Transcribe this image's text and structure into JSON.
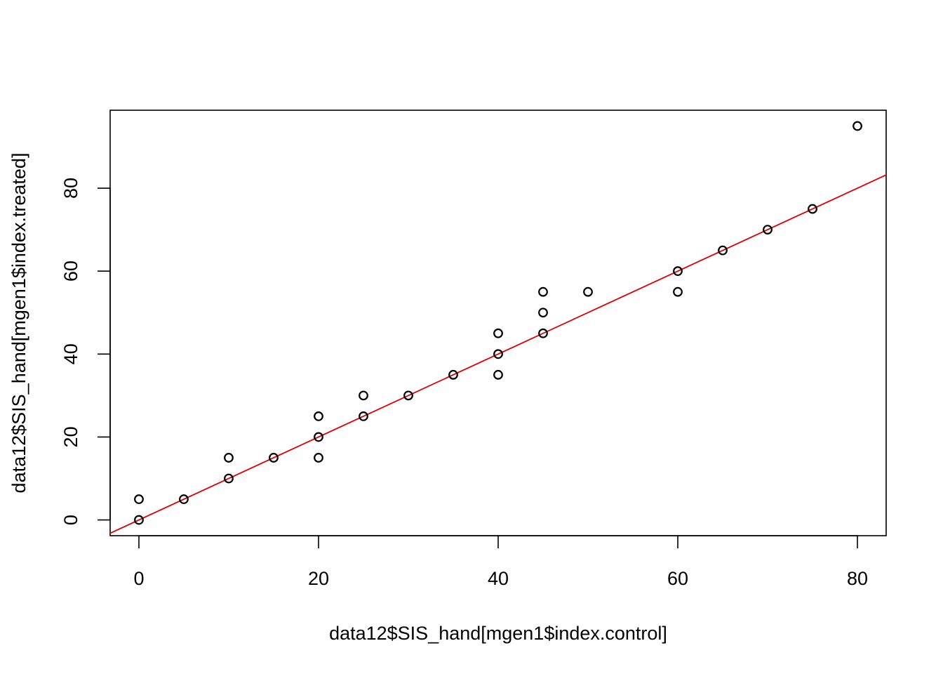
{
  "chart_data": {
    "type": "scatter",
    "title": "",
    "xlabel": "data12$SIS_hand[mgen1$index.control]",
    "ylabel": "data12$SIS_hand[mgen1$index.treated]",
    "xlim": [
      -3.2,
      83.2
    ],
    "ylim": [
      -3.8,
      98.8
    ],
    "x_ticks": [
      0,
      20,
      40,
      60,
      80
    ],
    "y_ticks": [
      0,
      20,
      40,
      60,
      80
    ],
    "x_tick_labels": [
      "0",
      "20",
      "40",
      "60",
      "80"
    ],
    "y_tick_labels": [
      "0",
      "20",
      "40",
      "60",
      "80"
    ],
    "grid": false,
    "box": true,
    "point_color": "#000000",
    "line_color": "#e00000",
    "series": [
      {
        "points": [
          [
            0,
            0
          ],
          [
            0,
            5
          ],
          [
            5,
            5
          ],
          [
            10,
            10
          ],
          [
            10,
            15
          ],
          [
            15,
            15
          ],
          [
            20,
            15
          ],
          [
            20,
            20
          ],
          [
            20,
            25
          ],
          [
            25,
            25
          ],
          [
            25,
            30
          ],
          [
            30,
            30
          ],
          [
            35,
            35
          ],
          [
            40,
            35
          ],
          [
            40,
            40
          ],
          [
            40,
            45
          ],
          [
            45,
            45
          ],
          [
            45,
            50
          ],
          [
            45,
            55
          ],
          [
            50,
            55
          ],
          [
            60,
            55
          ],
          [
            60,
            60
          ],
          [
            65,
            65
          ],
          [
            70,
            70
          ],
          [
            75,
            75
          ],
          [
            80,
            95
          ]
        ]
      }
    ],
    "reference_line": {
      "intercept": 0,
      "slope": 1
    }
  }
}
